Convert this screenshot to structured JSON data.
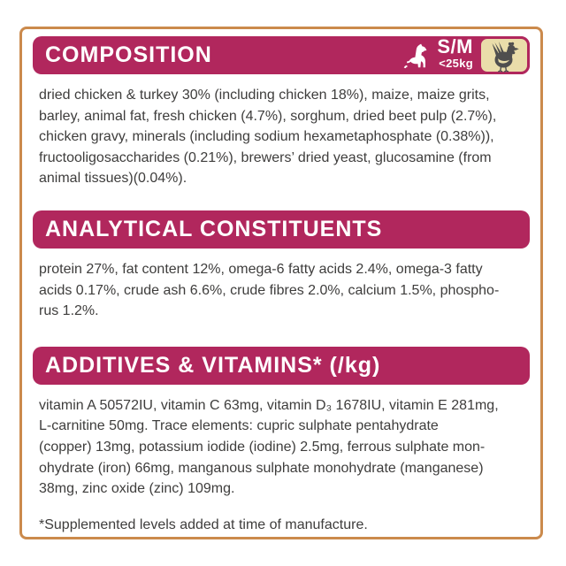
{
  "colors": {
    "accent": "#b1275d",
    "badge_bg": "#eaddaa",
    "border": "#cb8a4c",
    "text": "#3e3d3c",
    "chicken": "#4f4e4e",
    "header_text": "#ffffff"
  },
  "badge": {
    "dog_icon": "sitting-dog-silhouette",
    "size_label": "S/M",
    "weight_label": "<25kg",
    "flavour_icon": "chicken-silhouette"
  },
  "sections": [
    {
      "title": "COMPOSITION",
      "lines": [
        "dried chicken & turkey 30% (including chicken 18%), maize, maize grits,",
        "barley, animal fat, fresh chicken (4.7%), sorghum, dried beet pulp (2.7%),",
        "chicken gravy, minerals (including sodium hexametaphosphate (0.38%)),",
        "fructooligosaccharides (0.21%), brewers’ dried yeast, glucosamine (from",
        "animal tissues)(0.04%)."
      ]
    },
    {
      "title": "ANALYTICAL CONSTITUENTS",
      "lines": [
        "protein 27%, fat content 12%, omega-6 fatty acids 2.4%, omega-3 fatty",
        "acids 0.17%, crude ash 6.6%, crude fibres 2.0%, calcium 1.5%, phospho-",
        "rus 1.2%."
      ]
    },
    {
      "title": "ADDITIVES & VITAMINS* (/kg)",
      "lines": [
        "vitamin A 50572IU, vitamin C 63mg, vitamin D₃ 1678IU, vitamin E 281mg,",
        "L-carnitine 50mg. Trace elements: cupric sulphate pentahydrate",
        "(copper) 13mg, potassium iodide (iodine) 2.5mg, ferrous sulphate mon-",
        "ohydrate (iron) 66mg, manganous sulphate monohydrate (manganese)",
        "38mg, zinc oxide (zinc) 109mg."
      ]
    }
  ],
  "footnote": "*Supplemented levels added at time of manufacture."
}
